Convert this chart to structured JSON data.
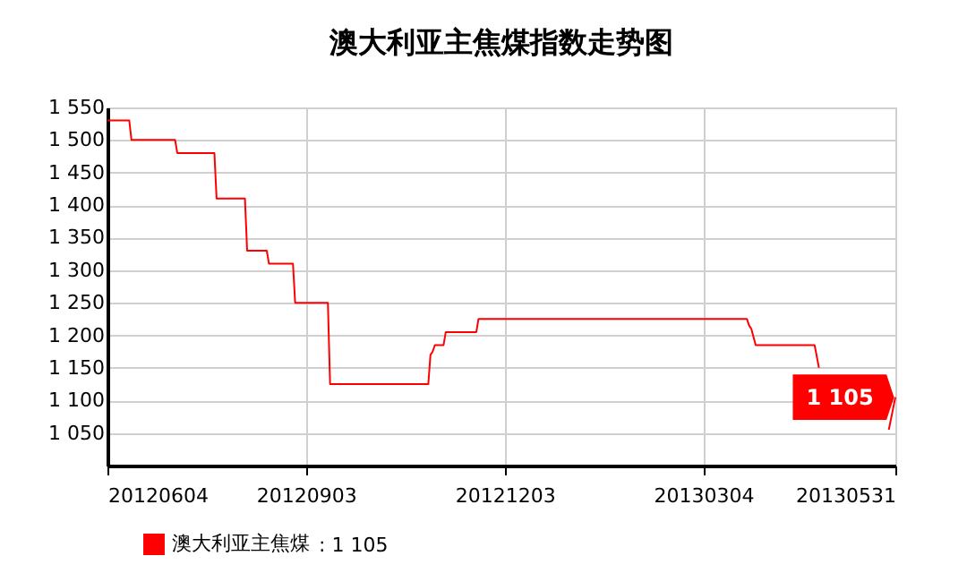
{
  "chart_data": {
    "type": "line",
    "title": "澳大利亚主焦煤指数走势图",
    "x": [
      "2012-06-04",
      "2012-06-14",
      "2012-06-15",
      "2012-07-05",
      "2012-07-06",
      "2012-07-23",
      "2012-07-24",
      "2012-08-06",
      "2012-08-07",
      "2012-08-16",
      "2012-08-17",
      "2012-08-28",
      "2012-08-29",
      "2012-09-13",
      "2012-09-14",
      "2012-10-29",
      "2012-10-30",
      "2012-10-31",
      "2012-11-01",
      "2012-11-05",
      "2012-11-06",
      "2012-11-20",
      "2012-11-21",
      "2013-03-24",
      "2013-03-25",
      "2013-03-26",
      "2013-03-28",
      "2013-04-24",
      "2013-04-26",
      "2013-04-27",
      "2013-05-28",
      "2013-05-31"
    ],
    "series": [
      {
        "name": "澳大利亚主焦煤",
        "color": "#ff0000",
        "values": [
          1530,
          1530,
          1500,
          1500,
          1480,
          1480,
          1410,
          1410,
          1330,
          1330,
          1310,
          1310,
          1250,
          1250,
          1125,
          1125,
          1170,
          1175,
          1185,
          1185,
          1205,
          1205,
          1225,
          1225,
          1215,
          1210,
          1185,
          1185,
          1150,
          null,
          1055,
          1105
        ]
      }
    ],
    "xlim": [
      "2012-06-04",
      "2013-05-31"
    ],
    "xticks": [
      {
        "value": "2012-06-04",
        "label": "20120604"
      },
      {
        "value": "2012-09-03",
        "label": "20120903"
      },
      {
        "value": "2012-12-03",
        "label": "20121203"
      },
      {
        "value": "2013-03-04",
        "label": "20130304"
      },
      {
        "value": "2013-05-31",
        "label": "20130531"
      }
    ],
    "ylim": [
      1000,
      1550
    ],
    "yticks": [
      {
        "value": 1050,
        "label": "1 050"
      },
      {
        "value": 1100,
        "label": "1 100"
      },
      {
        "value": 1150,
        "label": "1 150"
      },
      {
        "value": 1200,
        "label": "1 200"
      },
      {
        "value": 1250,
        "label": "1 250"
      },
      {
        "value": 1300,
        "label": "1 300"
      },
      {
        "value": 1350,
        "label": "1 350"
      },
      {
        "value": 1400,
        "label": "1 400"
      },
      {
        "value": 1450,
        "label": "1 450"
      },
      {
        "value": 1500,
        "label": "1 500"
      },
      {
        "value": 1550,
        "label": "1 550"
      }
    ],
    "annotations": [
      {
        "text": "1 105",
        "x": "2013-05-31",
        "y": 1105
      },
      ": 1 105"
    ],
    "grid": true,
    "legend": "bottom left",
    "marker": "none",
    "line_style": "solid"
  }
}
